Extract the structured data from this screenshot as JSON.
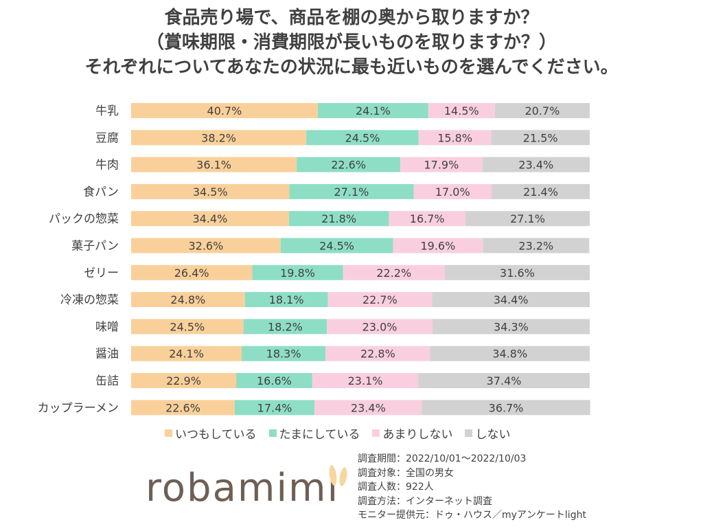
{
  "title": {
    "line1": "食品売り場で、商品を棚の奥から取りますか？",
    "line2": "（賞味期限・消費期限が長いものを取りますか？）",
    "line3": "それぞれについてあなたの状況に最も近いものを選んでください。"
  },
  "colors": {
    "always": "#FAD09A",
    "sometimes": "#8EDEC6",
    "rarely": "#F9CFDF",
    "never": "#D3D2D2",
    "text": "#404040"
  },
  "legend": [
    {
      "label": "いつもしている",
      "color": "#FAD09A"
    },
    {
      "label": "たまにしている",
      "color": "#8EDEC6"
    },
    {
      "label": "あまりしない",
      "color": "#F9CFDF"
    },
    {
      "label": "しない",
      "color": "#D3D2D2"
    }
  ],
  "chart_data": {
    "type": "bar",
    "orientation": "horizontal",
    "stacked": true,
    "percent_stacked": true,
    "categories": [
      "牛乳",
      "豆腐",
      "牛肉",
      "食パン",
      "パックの惣菜",
      "菓子パン",
      "ゼリー",
      "冷凍の惣菜",
      "味噌",
      "醤油",
      "缶詰",
      "カップラーメン"
    ],
    "series": [
      {
        "name": "いつもしている",
        "values": [
          40.7,
          38.2,
          36.1,
          34.5,
          34.4,
          32.6,
          26.4,
          24.8,
          24.5,
          24.1,
          22.9,
          22.6
        ]
      },
      {
        "name": "たまにしている",
        "values": [
          24.1,
          24.5,
          22.6,
          27.1,
          21.8,
          24.5,
          19.8,
          18.1,
          18.2,
          18.3,
          16.6,
          17.4
        ]
      },
      {
        "name": "あまりしない",
        "values": [
          14.5,
          15.8,
          17.9,
          17.0,
          16.7,
          19.6,
          22.2,
          22.7,
          23.0,
          22.8,
          23.1,
          23.4
        ]
      },
      {
        "name": "しない",
        "values": [
          20.7,
          21.5,
          23.4,
          21.4,
          27.1,
          23.2,
          31.6,
          34.4,
          34.3,
          34.8,
          37.4,
          36.7
        ]
      }
    ],
    "value_format": "{v}%",
    "xlim": [
      0,
      100
    ]
  },
  "footnote": {
    "period": "調査期間：2022/10/01～2022/10/03",
    "target": "調査対象：全国の男女",
    "count": "調査人数：922人",
    "method": "調査方法：インターネット調査",
    "provider": "モニター提供元：ドゥ・ハウス／myアンケートlight"
  },
  "logo": {
    "text": "robamimi"
  }
}
